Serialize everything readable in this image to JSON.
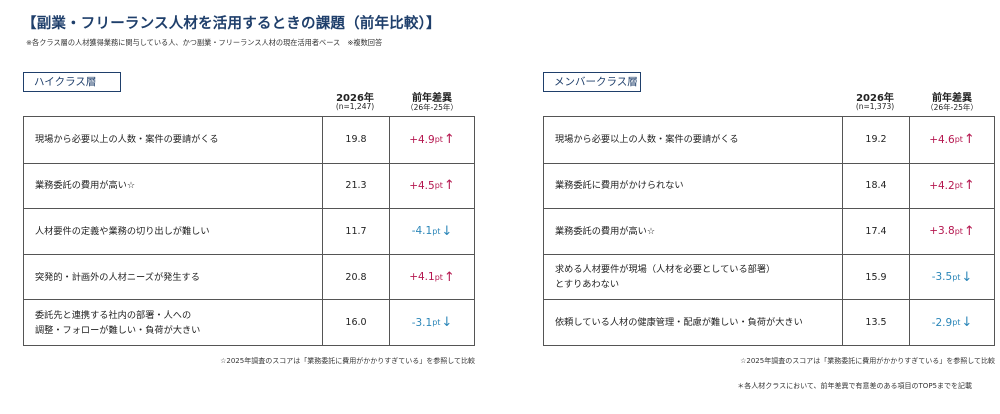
{
  "header": {
    "title": "【副業・フリーランス人材を活用するときの課題（前年比較）】",
    "subtitle": "※各クラス層の人材獲得業務に関与している人、かつ副業・フリーランス人材の現在活用者ベース　※複数回答"
  },
  "chart_data": [
    {
      "type": "table",
      "panel_label": "ハイクラス層",
      "col_year": "2026年",
      "col_n": "(n=1,247)",
      "col_diff": "前年差異",
      "col_diff_sub": "（26年-25年）",
      "unit": "pt",
      "rows": [
        {
          "label": "現場から必要以上の人数・案件の要請がくる",
          "value": "19.8",
          "diff": "+4.9",
          "direction": "up"
        },
        {
          "label": "業務委託の費用が高い☆",
          "value": "21.3",
          "diff": "+4.5",
          "direction": "up"
        },
        {
          "label": "人材要件の定義や業務の切り出しが難しい",
          "value": "11.7",
          "diff": "-4.1",
          "direction": "down"
        },
        {
          "label": "突発的・計画外の人材ニーズが発生する",
          "value": "20.8",
          "diff": "+4.1",
          "direction": "up"
        },
        {
          "label": "委託先と連携する社内の部署・人への\n調整・フォローが難しい・負荷が大きい",
          "value": "16.0",
          "diff": "-3.1",
          "direction": "down"
        }
      ],
      "footnote": "☆2025年調査のスコアは「業務委託に費用がかかりすぎている」を参照して比較"
    },
    {
      "type": "table",
      "panel_label": "メンバークラス層",
      "col_year": "2026年",
      "col_n": "(n=1,373)",
      "col_diff": "前年差異",
      "col_diff_sub": "（26年-25年）",
      "unit": "pt",
      "rows": [
        {
          "label": "現場から必要以上の人数・案件の要請がくる",
          "value": "19.2",
          "diff": "+4.6",
          "direction": "up"
        },
        {
          "label": "業務委託に費用がかけられない",
          "value": "18.4",
          "diff": "+4.2",
          "direction": "up"
        },
        {
          "label": "業務委託の費用が高い☆",
          "value": "17.4",
          "diff": "+3.8",
          "direction": "up"
        },
        {
          "label": "求める人材要件が現場（人材を必要としている部署）\nとすりあわない",
          "value": "15.9",
          "diff": "-3.5",
          "direction": "down"
        },
        {
          "label": "依頼している人材の健康管理・配慮が難しい・負荷が大きい",
          "value": "13.5",
          "diff": "-2.9",
          "direction": "down"
        }
      ],
      "footnote": "☆2025年調査のスコアは「業務委託に費用がかかりすぎている」を参照して比較"
    }
  ],
  "bottom_note": "＊各人材クラスにおいて、前年差異で有意差のある項目のTOP5までを記載",
  "colors": {
    "up": "#b5174f",
    "down": "#2b86b8",
    "accent": "#1f3f6b"
  },
  "arrows": {
    "up": "↑",
    "down": "↓"
  }
}
